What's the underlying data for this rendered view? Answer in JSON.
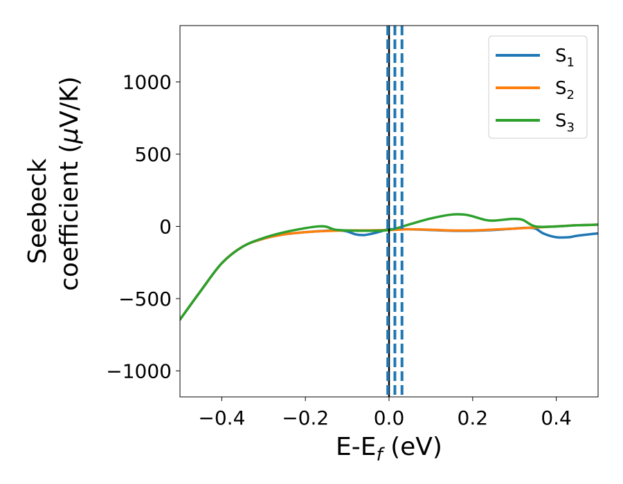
{
  "chart_data": {
    "type": "line",
    "xlabel": "E-E_f (eV)",
    "xlabel_parts": {
      "prefix": "E-E",
      "sub": "f",
      "suffix": " (eV)"
    },
    "ylabel_lines": [
      "Seebeck",
      "coefficient  (μV/K)"
    ],
    "ylabel_parts": {
      "line1": "Seebeck",
      "line2_prefix": "coefficient  (",
      "mu": "μ",
      "line2_suffix": "V/K)"
    },
    "xlim": [
      -0.5,
      0.5
    ],
    "ylim": [
      -1180,
      1390
    ],
    "x_ticks": [
      -0.4,
      -0.2,
      0.0,
      0.2,
      0.4
    ],
    "x_tick_labels": [
      "−0.4",
      "−0.2",
      "0.0",
      "0.2",
      "0.4"
    ],
    "y_ticks": [
      -1000,
      -500,
      0,
      500,
      1000
    ],
    "y_tick_labels": [
      "−1000",
      "−500",
      "0",
      "500",
      "1000"
    ],
    "grid": false,
    "legend_position": "top-right",
    "vlines": [
      {
        "x": 0.0,
        "color": "#000000",
        "style": "solid"
      },
      {
        "x": -0.003,
        "color": "#1f77b4",
        "style": "dashed"
      },
      {
        "x": 0.014,
        "color": "#1f77b4",
        "style": "dashed"
      },
      {
        "x": 0.031,
        "color": "#1f77b4",
        "style": "dashed"
      }
    ],
    "series": [
      {
        "name": "S1",
        "label_main": "S",
        "label_sub": "1",
        "color": "#1f77b4",
        "x": [
          -0.5,
          -0.45,
          -0.4,
          -0.35,
          -0.3,
          -0.25,
          -0.2,
          -0.15,
          -0.12,
          -0.1,
          -0.08,
          -0.06,
          -0.04,
          -0.02,
          0.0,
          0.05,
          0.1,
          0.15,
          0.2,
          0.25,
          0.3,
          0.33,
          0.35,
          0.37,
          0.4,
          0.43,
          0.45,
          0.5
        ],
        "y": [
          -645,
          -445,
          -255,
          -140,
          -85,
          -55,
          -40,
          -30,
          -28,
          -35,
          -55,
          -60,
          -50,
          -35,
          -20,
          -20,
          -25,
          -30,
          -30,
          -25,
          -15,
          -10,
          -15,
          -50,
          -75,
          -75,
          -65,
          -48
        ]
      },
      {
        "name": "S2",
        "label_main": "S",
        "label_sub": "2",
        "color": "#ff7f0e",
        "x": [
          -0.5,
          -0.45,
          -0.4,
          -0.35,
          -0.3,
          -0.25,
          -0.2,
          -0.15,
          -0.1,
          -0.05,
          0.0,
          0.05,
          0.1,
          0.15,
          0.2,
          0.25,
          0.3,
          0.35,
          0.4,
          0.45,
          0.5
        ],
        "y": [
          -645,
          -445,
          -255,
          -140,
          -85,
          -55,
          -40,
          -32,
          -28,
          -28,
          -25,
          -20,
          -23,
          -28,
          -28,
          -22,
          -15,
          -8,
          0,
          8,
          12
        ]
      },
      {
        "name": "S3",
        "label_main": "S",
        "label_sub": "3",
        "color": "#2ca02c",
        "x": [
          -0.5,
          -0.45,
          -0.4,
          -0.35,
          -0.3,
          -0.25,
          -0.2,
          -0.17,
          -0.15,
          -0.13,
          -0.1,
          -0.05,
          0.0,
          0.05,
          0.1,
          0.15,
          0.18,
          0.2,
          0.23,
          0.25,
          0.28,
          0.3,
          0.32,
          0.35,
          0.4,
          0.45,
          0.5
        ],
        "y": [
          -645,
          -445,
          -255,
          -140,
          -80,
          -40,
          -12,
          0,
          -2,
          -22,
          -28,
          -30,
          -25,
          15,
          55,
          82,
          82,
          70,
          45,
          40,
          48,
          52,
          45,
          0,
          0,
          8,
          12
        ]
      }
    ]
  }
}
